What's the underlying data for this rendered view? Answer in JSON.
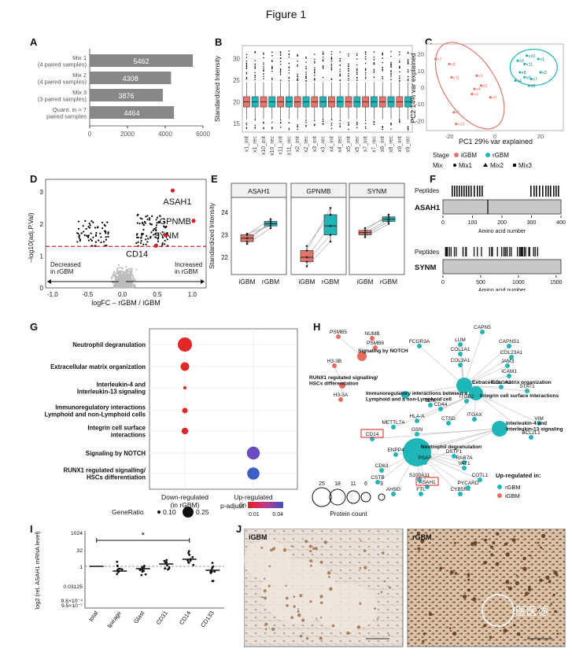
{
  "figure_title": "Figure 1",
  "panel_letters": {
    "A": "A",
    "B": "B",
    "C": "C",
    "D": "D",
    "E": "E",
    "F": "F",
    "G": "G",
    "H": "H",
    "I": "I",
    "J": "J"
  },
  "colors": {
    "igbm": "#e8756b",
    "rgbm": "#1fb6b8",
    "bar_gray": "#888888",
    "sig_red": "#e01f26",
    "nonsig_gray": "#bdbdbd",
    "sig_black": "#000000"
  },
  "panel_A": {
    "labels": [
      "Mix 1\n(4 paired samples)",
      "Mix 2\n(4 paired samples)",
      "Mix 3\n(3 paired samples)",
      "Quant. in > 7\npaired samples"
    ],
    "values": [
      5462,
      4308,
      3876,
      4464
    ],
    "ticks": [
      "0",
      "2000",
      "4000",
      "6000"
    ]
  },
  "panel_B": {
    "ylabel": "Standardized Intensity",
    "yticks": [
      "15",
      "20",
      "25",
      "30"
    ],
    "xlabels": [
      "x1_init",
      "x1_rec",
      "x10_init",
      "x10_rec",
      "x11_init",
      "x11_rec",
      "x2_init",
      "x2_rec",
      "x3_init",
      "x3_rec",
      "x4_init",
      "x4_rec",
      "x5_init",
      "x5_rec",
      "x7_init",
      "x7_rec",
      "x8_init",
      "x8_rec",
      "x9_init",
      "x9_rec"
    ]
  },
  "panel_C": {
    "xlabel": "PC1 29% var explained",
    "ylabel": "PC2 14% var explained",
    "xticks": [
      "-20",
      "0",
      "20"
    ],
    "yticks": [
      "20",
      "10",
      "0",
      "-10",
      "-20"
    ],
    "legend_stage_title": "Stage",
    "legend_mix_title": "Mix",
    "legend_stage": [
      "iGBM",
      "rGBM"
    ],
    "legend_mix": [
      "Mix1",
      "Mix2",
      "Mix3"
    ],
    "igbm_points": [
      "x7",
      "x8",
      "x11",
      "x3",
      "x5",
      "x4",
      "x4",
      "x9",
      "x1",
      "x10"
    ],
    "rgbm_points": [
      "x3",
      "x10",
      "x11",
      "x1",
      "x8",
      "x9",
      "x2",
      "x4",
      "x7",
      "x5"
    ]
  },
  "panel_D": {
    "xlabel": "logFC – rGBM / iGBM",
    "ylabel": "–log10(adj.P.Val)",
    "xticks": [
      "-1.0",
      "-0.5",
      "0.0",
      "0.5",
      "1.0"
    ],
    "yticks": [
      "0",
      "1",
      "2",
      "3"
    ],
    "decreased": "Decreased\nin rGBM",
    "increased": "Increased\nin rGBM",
    "genes": [
      "ASAH1",
      "GPNMB",
      "SYNM",
      "CD14"
    ]
  },
  "panel_E": {
    "ylabel": "Standardized Intensity",
    "facets": [
      "ASAH1",
      "GPNMB",
      "SYNM"
    ],
    "xlabels": [
      "iGBM",
      "rGBM"
    ],
    "yticks": [
      "22",
      "23",
      "24"
    ]
  },
  "panel_F": {
    "peptides_label": "Peptides",
    "protein1": "ASAH1",
    "protein2": "SYNM",
    "axis_label": "Amino acid number",
    "ticks1": [
      "0",
      "100",
      "200",
      "300",
      "400"
    ],
    "ticks2": [
      "0",
      "500",
      "1000",
      "1500"
    ]
  },
  "panel_G": {
    "terms": [
      "Neutrophil degranulation",
      "Extracellular matrix organization",
      "Interleukin-4 and\nInterleukin-13 signaling",
      "Immunoregulatory interactions\nLymphoid and non-Lymphoid cells",
      "Integrin cell surface\ninteractions",
      "Signaling by NOTCH",
      "RUNX1 regulated signalling/\nHSCs differentiation"
    ],
    "xcats": [
      "Down-regulated\n(in rGBM)",
      "Up-regulated\n(in rGBM)"
    ],
    "generatio_title": "GeneRatio",
    "generatio_vals": [
      "0.10",
      "0.25"
    ],
    "padj_title": "p-adjust",
    "padj_vals": [
      "0.01",
      "0.04"
    ]
  },
  "panel_H": {
    "pathways": [
      "Signaling by NOTCH",
      "RUNX1 regulated signalling/\nHSCs differentiation",
      "Immunoregulatory interactions between a\nLymphoid and a non-Lymphoid cell",
      "Extracellular matrix organization",
      "Integrin cell surface interactions",
      "Interleukin-4 and\nInterleukin-13 signaling",
      "Neutrophil degranulation"
    ],
    "genes_red": [
      "PSMB5",
      "NUMB",
      "PSMB8",
      "H3-3B",
      "H3-3A"
    ],
    "genes_teal": [
      "CAPN5",
      "FCGR3A",
      "LUM",
      "CAPNS1",
      "COL1A1",
      "COL23A1",
      "JAM3",
      "COL3A1",
      "ICAM1",
      "COL1A2",
      "STAT1",
      "B2M",
      "CD44",
      "ITGB2",
      "METTL7A",
      "HLA-A",
      "CTSD",
      "ITGAX",
      "VIM",
      "BCL2L1",
      "CD14",
      "GSN",
      "ENPP4",
      "PSAP",
      "DSTF1",
      "RAB7A",
      "CD63",
      "S100A11",
      "VAT1",
      "CSTB",
      "ASAH1",
      "COTL1",
      "AHSG",
      "FTL",
      "CYB5R3",
      "PYCARD"
    ],
    "boxed_genes": [
      "CD14",
      "ASAH1"
    ],
    "count_legend": [
      "25",
      "18",
      "11",
      "6",
      "3"
    ],
    "count_title": "Protein count",
    "updown_title": "Up-regulated in:",
    "updown_items": [
      "rGBM",
      "iGBM"
    ]
  },
  "panel_I": {
    "ylabel": "log2 (rel. ASAH1 mRNA level)",
    "yticks": [
      "1024",
      "32",
      "1",
      "0.03125",
      "9.8×10⁻⁴",
      "9.5×10⁻⁷"
    ],
    "xlabels": [
      "total",
      "lineage",
      "Glast",
      "CD31",
      "CD14",
      "CD133"
    ],
    "sig": "*"
  },
  "panel_J": {
    "left_label": "iGBM",
    "right_label": "rGBM",
    "watermark": "医医德"
  }
}
